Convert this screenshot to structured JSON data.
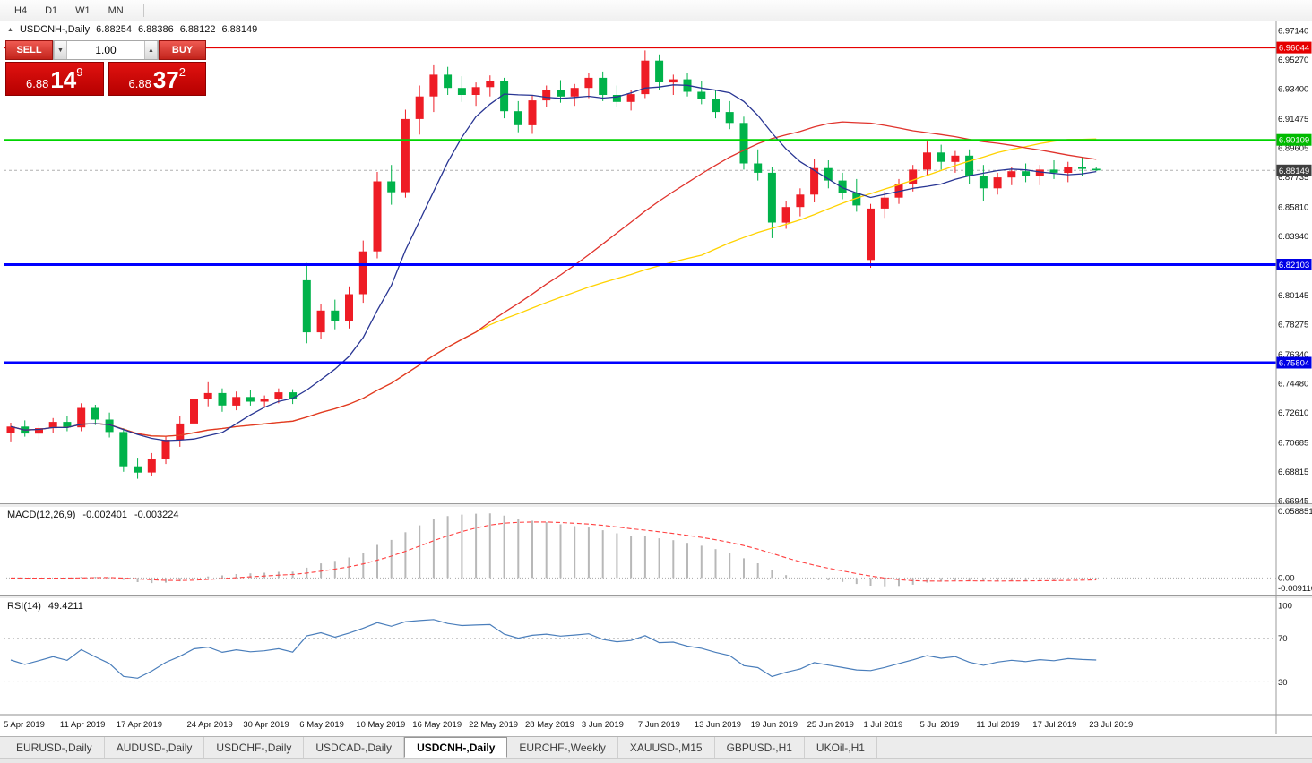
{
  "toolbar": {
    "timeframes": [
      "H4",
      "D1",
      "W1",
      "MN"
    ]
  },
  "ui": {
    "title": {
      "symbol": "USDCNH-,Daily",
      "open": "6.88254",
      "high": "6.88386",
      "low": "6.88122",
      "close": "6.88149"
    },
    "trade_panel": {
      "sell_label": "SELL",
      "buy_label": "BUY",
      "volume": "1.00",
      "sell_price_main": "6.88",
      "sell_price_pips": "14",
      "sell_price_point": "9",
      "buy_price_main": "6.88",
      "buy_price_pips": "37",
      "buy_price_point": "2"
    },
    "macd": {
      "name": "MACD(12,26,9)",
      "value": "-0.002401",
      "signal_value": "-0.003224",
      "axis": [
        {
          "label": "0.058851",
          "pos": "top"
        },
        {
          "label": "0.00",
          "pos": "zero"
        },
        {
          "label": "-0.009116",
          "pos": "bottom"
        }
      ],
      "colors": {
        "histogram": "#b8b8b8",
        "signal": "#ff4040"
      }
    },
    "rsi": {
      "name": "RSI(14)",
      "value": "49.4211",
      "color": "#4a7ebb",
      "axis": [
        {
          "label": "100",
          "v": 100
        },
        {
          "label": "70",
          "v": 70
        },
        {
          "label": "30",
          "v": 30
        }
      ],
      "levels": [
        70,
        30
      ]
    }
  },
  "tabs": {
    "items": [
      "EURUSD-,Daily",
      "AUDUSD-,Daily",
      "USDCHF-,Daily",
      "USDCAD-,Daily",
      "USDCNH-,Daily",
      "EURCHF-,Weekly",
      "XAUUSD-,M15",
      "GBPUSD-,H1",
      "UKOil-,H1"
    ],
    "active_index": 4
  },
  "chart_data": {
    "type": "candlestick",
    "symbol": "USDCNH-,Daily",
    "timeframe": "Daily",
    "colors": {
      "bull": "#ee1c25",
      "bear": "#00b24a"
    },
    "current_price": 6.88149,
    "y_axis_labels": [
      "6.97140",
      "6.95270",
      "6.93400",
      "6.91475",
      "6.89605",
      "6.87735",
      "6.85810",
      "6.83940",
      "6.80145",
      "6.78275",
      "6.76340",
      "6.74480",
      "6.72610",
      "6.70685",
      "6.68815",
      "6.66945"
    ],
    "price_badges": [
      {
        "price": 6.96044,
        "label": "6.96044",
        "color": "#e60000"
      },
      {
        "price": 6.90109,
        "label": "6.90109",
        "color": "#00bb00"
      },
      {
        "price": 6.88149,
        "label": "6.88149",
        "color": "#3f3f3f"
      },
      {
        "price": 6.82103,
        "label": "6.82103",
        "color": "#0000e6"
      },
      {
        "price": 6.75804,
        "label": "6.75804",
        "color": "#0000e6"
      }
    ],
    "hlines": [
      {
        "price": 6.96044,
        "color": "#e60000",
        "width": 2
      },
      {
        "price": 6.90109,
        "color": "#00d400",
        "width": 2
      },
      {
        "price": 6.82103,
        "color": "#0000ff",
        "width": 3
      },
      {
        "price": 6.75804,
        "color": "#0000ff",
        "width": 3
      }
    ],
    "moving_averages": [
      {
        "period": 50,
        "color": "#ffd200"
      },
      {
        "period": 34,
        "color": "#e0332c"
      },
      {
        "period": 8,
        "color": "#283593"
      }
    ],
    "macd_params": {
      "fast": 12,
      "slow": 26,
      "signal": 9
    },
    "rsi_period": 14,
    "x_labels": [
      {
        "text": "5 Apr 2019",
        "i": 0
      },
      {
        "text": "11 Apr 2019",
        "i": 4
      },
      {
        "text": "17 Apr 2019",
        "i": 8
      },
      {
        "text": "24 Apr 2019",
        "i": 13
      },
      {
        "text": "30 Apr 2019",
        "i": 17
      },
      {
        "text": "6 May 2019",
        "i": 21
      },
      {
        "text": "10 May 2019",
        "i": 25
      },
      {
        "text": "16 May 2019",
        "i": 29
      },
      {
        "text": "22 May 2019",
        "i": 33
      },
      {
        "text": "28 May 2019",
        "i": 37
      },
      {
        "text": "3 Jun 2019",
        "i": 41
      },
      {
        "text": "7 Jun 2019",
        "i": 45
      },
      {
        "text": "13 Jun 2019",
        "i": 49
      },
      {
        "text": "19 Jun 2019",
        "i": 53
      },
      {
        "text": "25 Jun 2019",
        "i": 57
      },
      {
        "text": "1 Jul 2019",
        "i": 61
      },
      {
        "text": "5 Jul 2019",
        "i": 65
      },
      {
        "text": "11 Jul 2019",
        "i": 69
      },
      {
        "text": "17 Jul 2019",
        "i": 73
      },
      {
        "text": "23 Jul 2019",
        "i": 77
      }
    ],
    "candles": [
      [
        6.713,
        6.7195,
        6.7075,
        6.717
      ],
      [
        6.717,
        6.721,
        6.7105,
        6.7125
      ],
      [
        6.7125,
        6.718,
        6.7085,
        6.716
      ],
      [
        6.716,
        6.7225,
        6.713,
        6.72
      ],
      [
        6.72,
        6.7235,
        6.714,
        6.7165
      ],
      [
        6.7165,
        6.732,
        6.714,
        6.729
      ],
      [
        6.729,
        6.731,
        6.718,
        6.7215
      ],
      [
        6.7215,
        6.726,
        6.71,
        6.7135
      ],
      [
        6.7135,
        6.716,
        6.688,
        6.6915
      ],
      [
        6.6915,
        6.697,
        6.6835,
        6.6875
      ],
      [
        6.6875,
        6.7,
        6.685,
        6.696
      ],
      [
        6.696,
        6.711,
        6.693,
        6.7085
      ],
      [
        6.7085,
        6.724,
        6.704,
        6.719
      ],
      [
        6.719,
        6.742,
        6.716,
        6.7345
      ],
      [
        6.7345,
        6.7455,
        6.73,
        6.7385
      ],
      [
        6.7385,
        6.7415,
        6.7265,
        6.7305
      ],
      [
        6.7305,
        6.7395,
        6.7275,
        6.736
      ],
      [
        6.736,
        6.7405,
        6.7305,
        6.733
      ],
      [
        6.733,
        6.737,
        6.7295,
        6.735
      ],
      [
        6.735,
        6.7415,
        6.732,
        6.739
      ],
      [
        6.739,
        6.741,
        6.7315,
        6.7345
      ],
      [
        6.811,
        6.822,
        6.7705,
        6.7775
      ],
      [
        6.7775,
        6.7955,
        6.773,
        6.7915
      ],
      [
        6.7915,
        6.7985,
        6.7795,
        6.7845
      ],
      [
        6.7845,
        6.807,
        6.78,
        6.802
      ],
      [
        6.802,
        6.8365,
        6.7965,
        6.8295
      ],
      [
        6.8295,
        6.8805,
        6.825,
        6.8745
      ],
      [
        6.8745,
        6.885,
        6.8595,
        6.8675
      ],
      [
        6.8675,
        6.9205,
        6.864,
        6.9145
      ],
      [
        6.9145,
        6.936,
        6.9045,
        6.929
      ],
      [
        6.929,
        6.949,
        6.919,
        6.943
      ],
      [
        6.943,
        6.948,
        6.93,
        6.9345
      ],
      [
        6.9345,
        6.942,
        6.9255,
        6.93
      ],
      [
        6.93,
        6.938,
        6.923,
        6.935
      ],
      [
        6.935,
        6.9425,
        6.929,
        6.939
      ],
      [
        6.939,
        6.941,
        6.915,
        6.9195
      ],
      [
        6.9195,
        6.926,
        6.906,
        6.9105
      ],
      [
        6.9105,
        6.93,
        6.905,
        6.9265
      ],
      [
        6.9265,
        6.936,
        6.922,
        6.933
      ],
      [
        6.933,
        6.9395,
        6.925,
        6.929
      ],
      [
        6.929,
        6.937,
        6.923,
        6.9345
      ],
      [
        6.9345,
        6.944,
        6.928,
        6.941
      ],
      [
        6.941,
        6.945,
        6.926,
        6.93
      ],
      [
        6.93,
        6.936,
        6.922,
        6.9255
      ],
      [
        6.9255,
        6.933,
        6.92,
        6.9305
      ],
      [
        6.9305,
        6.9585,
        6.928,
        6.952
      ],
      [
        6.952,
        6.956,
        6.933,
        6.938
      ],
      [
        6.938,
        6.943,
        6.93,
        6.94
      ],
      [
        6.94,
        6.944,
        6.929,
        6.932
      ],
      [
        6.932,
        6.939,
        6.924,
        6.9275
      ],
      [
        6.9275,
        6.933,
        6.915,
        6.919
      ],
      [
        6.919,
        6.926,
        6.908,
        6.912
      ],
      [
        6.912,
        6.916,
        6.882,
        6.886
      ],
      [
        6.886,
        6.895,
        6.875,
        6.88
      ],
      [
        6.88,
        6.884,
        6.838,
        6.848
      ],
      [
        6.848,
        6.862,
        6.844,
        6.858
      ],
      [
        6.858,
        6.87,
        6.852,
        6.866
      ],
      [
        6.866,
        6.889,
        6.861,
        6.883
      ],
      [
        6.883,
        6.888,
        6.87,
        6.875
      ],
      [
        6.875,
        6.88,
        6.863,
        6.867
      ],
      [
        6.867,
        6.876,
        6.855,
        6.859
      ],
      [
        6.824,
        6.86,
        6.819,
        6.857
      ],
      [
        6.857,
        6.868,
        6.851,
        6.864
      ],
      [
        6.864,
        6.876,
        6.86,
        6.873
      ],
      [
        6.873,
        6.885,
        6.868,
        6.882
      ],
      [
        6.882,
        6.9,
        6.878,
        6.893
      ],
      [
        6.893,
        6.898,
        6.882,
        6.887
      ],
      [
        6.887,
        6.894,
        6.88,
        6.891
      ],
      [
        6.891,
        6.895,
        6.873,
        6.878
      ],
      [
        6.878,
        6.885,
        6.862,
        6.87
      ],
      [
        6.87,
        6.88,
        6.866,
        6.877
      ],
      [
        6.877,
        6.884,
        6.872,
        6.881
      ],
      [
        6.881,
        6.886,
        6.874,
        6.878
      ],
      [
        6.878,
        6.885,
        6.872,
        6.882
      ],
      [
        6.882,
        6.888,
        6.876,
        6.88
      ],
      [
        6.88,
        6.887,
        6.874,
        6.884
      ],
      [
        6.884,
        6.89,
        6.878,
        6.8825
      ],
      [
        6.88254,
        6.88386,
        6.88122,
        6.88149
      ]
    ]
  }
}
